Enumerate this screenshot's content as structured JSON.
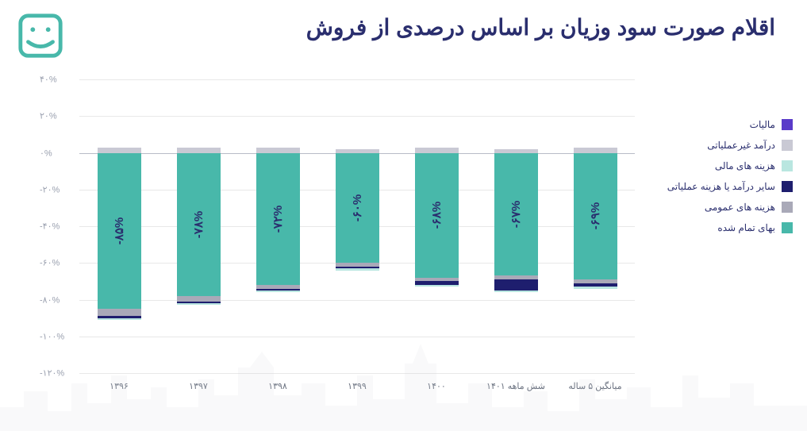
{
  "title": "اقلام صورت سود وزیان بر اساس درصدی از فروش",
  "chart": {
    "type": "stacked-bar",
    "y_axis": {
      "min": -120,
      "max": 40,
      "step": 20,
      "suffix": "%",
      "tick_color": "#9aa0af",
      "grid_color": "#e8e8e8",
      "font_size": 11
    },
    "categories": [
      "۱۳۹۶",
      "۱۳۹۷",
      "۱۳۹۸",
      "۱۳۹۹",
      "۱۴۰۰",
      "شش ماهه ۱۴۰۱",
      "میانگین ۵ ساله"
    ],
    "bar_width_ratio": 0.55,
    "series": [
      {
        "key": "maliat",
        "label": "مالیات",
        "color": "#5a3bc9"
      },
      {
        "key": "nonop",
        "label": "درآمد غیرعملیاتی",
        "color": "#c9c9d4"
      },
      {
        "key": "financial",
        "label": "هزینه های مالی",
        "color": "#b9e6e0"
      },
      {
        "key": "otherop",
        "label": "سایر درآمد یا هزینه عملیاتی",
        "color": "#1e1e6e"
      },
      {
        "key": "general",
        "label": "هزینه های عمومی",
        "color": "#a9a9b8"
      },
      {
        "key": "cogs",
        "label": "بهای تمام شده",
        "color": "#48b8aa"
      }
    ],
    "data": [
      {
        "category": "۱۳۹۶",
        "maliat": 0,
        "nonop": 3,
        "financial": -1,
        "otherop": -1,
        "general": -4,
        "cogs": -85,
        "label": "-۸۵%"
      },
      {
        "category": "۱۳۹۷",
        "maliat": 0,
        "nonop": 3,
        "financial": -1,
        "otherop": -1,
        "general": -3,
        "cogs": -78,
        "label": "-۷۸%"
      },
      {
        "category": "۱۳۹۸",
        "maliat": 0,
        "nonop": 3,
        "financial": -1,
        "otherop": -1,
        "general": -2,
        "cogs": -72,
        "label": "-۷۲%"
      },
      {
        "category": "۱۳۹۹",
        "maliat": 0,
        "nonop": 2,
        "financial": -1,
        "otherop": -1,
        "general": -2,
        "cogs": -60,
        "label": "-۶۰%"
      },
      {
        "category": "۱۴۰۰",
        "maliat": 0,
        "nonop": 3,
        "financial": -1,
        "otherop": -2,
        "general": -2,
        "cogs": -68,
        "label": "-۶۸%"
      },
      {
        "category": "شش ماهه ۱۴۰۱",
        "maliat": 0,
        "nonop": 2,
        "financial": -1,
        "otherop": -6,
        "general": -2,
        "cogs": -67,
        "label": "-۶۷%"
      },
      {
        "category": "میانگین ۵ ساله",
        "maliat": 0,
        "nonop": 3,
        "financial": -1,
        "otherop": -2,
        "general": -2,
        "cogs": -69,
        "label": "-۶۹%"
      }
    ],
    "bar_label_color": "#2a2e6e",
    "bar_label_fontsize": 15,
    "background_color": "#ffffff"
  },
  "legend": {
    "font_size": 12,
    "color": "#2a2e6e"
  },
  "logo": {
    "stroke": "#48b8aa"
  },
  "skyline": {
    "fill": "#d0d4db"
  }
}
